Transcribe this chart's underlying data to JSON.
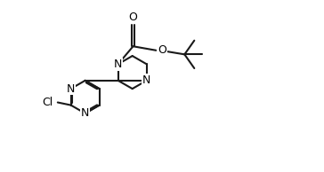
{
  "bg_color": "#ffffff",
  "line_color": "#1a1a1a",
  "line_width": 1.5,
  "font_size": 9,
  "figsize": [
    3.64,
    1.94
  ],
  "dpi": 100,
  "xlim": [
    -1.0,
    9.5
  ],
  "ylim": [
    -3.2,
    3.0
  ]
}
